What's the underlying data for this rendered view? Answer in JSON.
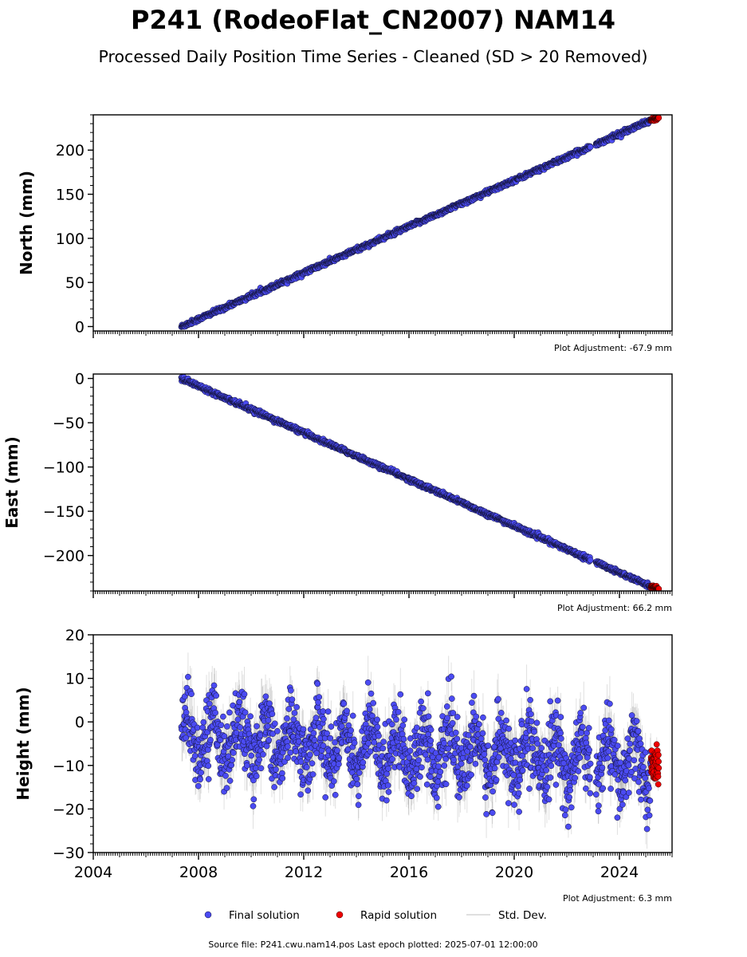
{
  "title": "P241 (RodeoFlat_CN2007) NAM14",
  "subtitle": "Processed Daily Position Time Series - Cleaned (SD > 20 Removed)",
  "colors": {
    "final": "#4b4bf2",
    "rapid": "#ee0000",
    "std": "#999999",
    "marker_edge": "#111133"
  },
  "chart_data": [
    {
      "type": "scatter",
      "ylabel": "North (mm)",
      "xlim": [
        2004,
        2026
      ],
      "ylim": [
        -5,
        240
      ],
      "yticks": [
        0,
        50,
        100,
        150,
        200
      ],
      "ytick_labels": [
        "0",
        "50",
        "100",
        "150",
        "200"
      ],
      "adjustment": "Plot Adjustment: -67.9 mm",
      "series": [
        {
          "kind": "final",
          "x_start": 2007.35,
          "x_end": 2025.2,
          "y_start": 0,
          "y_end": 234,
          "noise_sd": 1.2,
          "gap": [
            2022.9,
            2023.1
          ]
        },
        {
          "kind": "rapid",
          "x_start": 2025.2,
          "x_end": 2025.5,
          "y_start": 234,
          "y_end": 237,
          "noise_sd": 0.8
        }
      ]
    },
    {
      "type": "scatter",
      "ylabel": "East (mm)",
      "xlim": [
        2004,
        2026
      ],
      "ylim": [
        -240,
        5
      ],
      "yticks": [
        0,
        -50,
        -100,
        -150,
        -200
      ],
      "ytick_labels": [
        "0",
        "−50",
        "−100",
        "−150",
        "−200"
      ],
      "adjustment": "Plot Adjustment: 66.2 mm",
      "series": [
        {
          "kind": "final",
          "x_start": 2007.35,
          "x_end": 2025.2,
          "y_start": 0,
          "y_end": -235,
          "noise_sd": 1.2,
          "gap": [
            2022.9,
            2023.1
          ]
        },
        {
          "kind": "rapid",
          "x_start": 2025.2,
          "x_end": 2025.5,
          "y_start": -235,
          "y_end": -238,
          "noise_sd": 0.8
        }
      ]
    },
    {
      "type": "scatter",
      "ylabel": "Height (mm)",
      "xlim": [
        2004,
        2026
      ],
      "ylim": [
        -30,
        20
      ],
      "yticks": [
        20,
        10,
        0,
        -10,
        -20,
        -30
      ],
      "ytick_labels": [
        "20",
        "10",
        "0",
        "−10",
        "−20",
        "−30"
      ],
      "xticks": [
        2004,
        2008,
        2012,
        2016,
        2020,
        2024
      ],
      "xtick_labels": [
        "2004",
        "2008",
        "2012",
        "2016",
        "2020",
        "2024"
      ],
      "adjustment": "Plot Adjustment: 6.3 mm",
      "series": [
        {
          "kind": "final",
          "x_start": 2007.35,
          "x_end": 2025.2,
          "y_start": -3,
          "y_end": -10,
          "seasonal_amp": 5,
          "noise_sd": 4,
          "gap": [
            2022.9,
            2023.1
          ]
        },
        {
          "kind": "rapid",
          "x_start": 2025.2,
          "x_end": 2025.5,
          "y_start": -10,
          "y_end": -10,
          "noise_sd": 2
        }
      ]
    }
  ],
  "legend": [
    {
      "kind": "final",
      "label": "Final solution"
    },
    {
      "kind": "rapid",
      "label": "Rapid solution"
    },
    {
      "kind": "std",
      "label": "Std. Dev."
    }
  ],
  "footer": "Source file: P241.cwu.nam14.pos  Last epoch plotted: 2025-07-01 12:00:00"
}
